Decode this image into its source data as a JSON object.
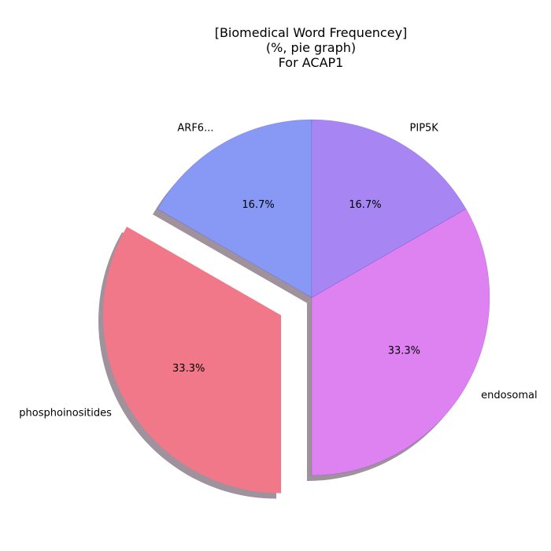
{
  "chart_data": {
    "type": "pie",
    "title_lines": [
      "[Biomedical Word Frequencey]",
      "(%, pie graph)",
      "For ACAP1"
    ],
    "slices": [
      {
        "label": "ARF6...",
        "value": 16.7,
        "pct_label": "16.7%",
        "color": "#8799f5",
        "explode": false
      },
      {
        "label": "phosphoinositides",
        "value": 33.3,
        "pct_label": "33.3%",
        "color": "#f07888",
        "explode": true
      },
      {
        "label": "endosomal",
        "value": 33.3,
        "pct_label": "33.3%",
        "color": "#de82f2",
        "explode": false
      },
      {
        "label": "PIP5K",
        "value": 16.7,
        "pct_label": "16.7%",
        "color": "#a786f4",
        "explode": false
      }
    ],
    "start_angle_deg": 90,
    "direction": "counterclockwise",
    "shadow": true
  }
}
